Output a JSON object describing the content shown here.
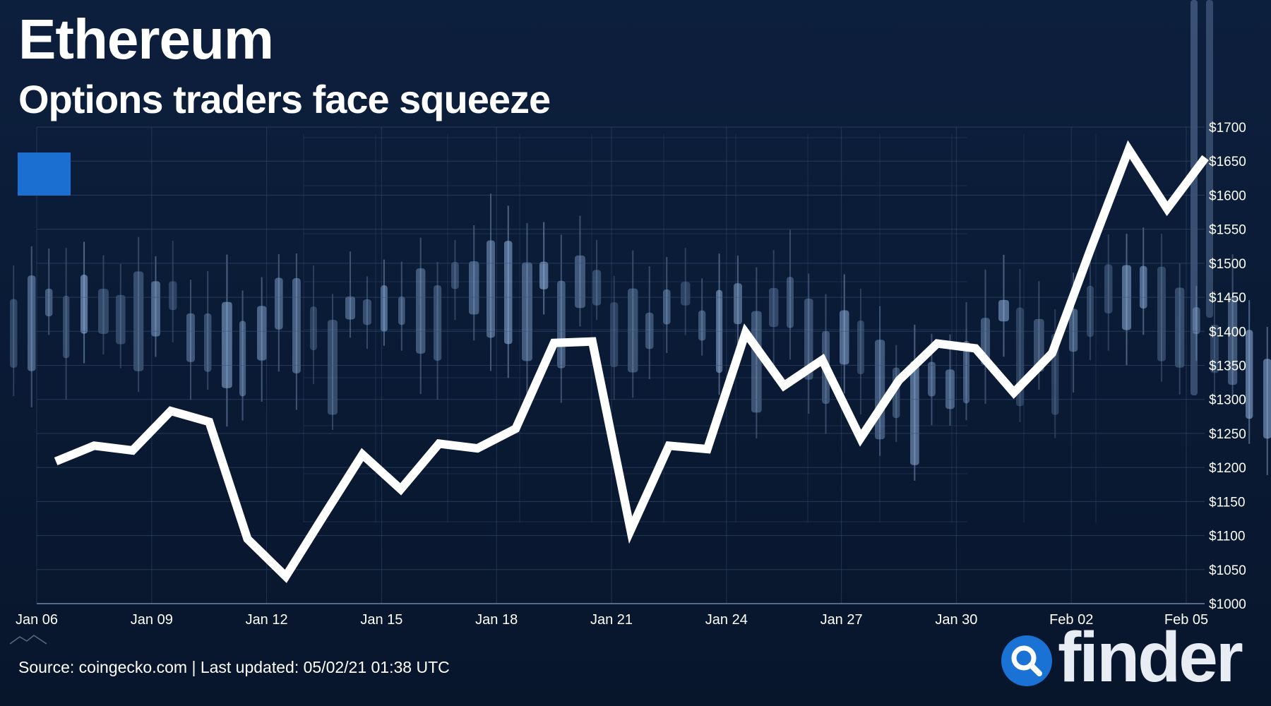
{
  "header": {
    "title": "Ethereum",
    "subtitle": "Options traders face squeeze"
  },
  "footer": {
    "source": "Source: coingecko.com | Last updated: 05/02/21 01:38 UTC"
  },
  "brand": {
    "name": "finder",
    "logo_icon": "magnifier-icon",
    "logo_color": "#1a72d4"
  },
  "colors": {
    "background": "#0a1a33",
    "line": "#ffffff",
    "legend_swatch": "#1a6fd1",
    "axis_text": "#ffffff",
    "grid": "#3b5478"
  },
  "chart_data": {
    "type": "line",
    "title": "Ethereum",
    "subtitle": "Options traders face squeeze",
    "xlabel": "",
    "ylabel": "",
    "ylim": [
      1000,
      1700
    ],
    "y_ticks": [
      1000,
      1050,
      1100,
      1150,
      1200,
      1250,
      1300,
      1350,
      1400,
      1450,
      1500,
      1550,
      1600,
      1650,
      1700
    ],
    "y_tick_labels": [
      "$1000",
      "$1050",
      "$1100",
      "$1150",
      "$1200",
      "$1250",
      "$1300",
      "$1350",
      "$1400",
      "$1450",
      "$1500",
      "$1550",
      "$1600",
      "$1650",
      "$1700"
    ],
    "x_range": [
      "2021-01-06",
      "2021-02-05"
    ],
    "x_tick_dates": [
      "2021-01-06",
      "2021-01-09",
      "2021-01-12",
      "2021-01-15",
      "2021-01-18",
      "2021-01-21",
      "2021-01-24",
      "2021-01-27",
      "2021-01-30",
      "2021-02-02",
      "2021-02-05"
    ],
    "x_tick_labels": [
      "Jan 06",
      "Jan 09",
      "Jan 12",
      "Jan 15",
      "Jan 18",
      "Jan 21",
      "Jan 24",
      "Jan 27",
      "Jan 30",
      "Feb 02",
      "Feb 05"
    ],
    "grid": true,
    "legend": "top-left",
    "series": [
      {
        "color": "#ffffff",
        "points": [
          [
            "2021-01-06T12:00",
            1209
          ],
          [
            "2021-01-07T12:00",
            1232
          ],
          [
            "2021-01-08T12:00",
            1225
          ],
          [
            "2021-01-09T12:00",
            1283
          ],
          [
            "2021-01-10T12:00",
            1267
          ],
          [
            "2021-01-11T12:00",
            1095
          ],
          [
            "2021-01-12T12:00",
            1040
          ],
          [
            "2021-01-13T12:00",
            1130
          ],
          [
            "2021-01-14T12:00",
            1219
          ],
          [
            "2021-01-15T12:00",
            1168
          ],
          [
            "2021-01-16T12:00",
            1235
          ],
          [
            "2021-01-17T12:00",
            1228
          ],
          [
            "2021-01-18T12:00",
            1257
          ],
          [
            "2021-01-19T12:00",
            1383
          ],
          [
            "2021-01-20T12:00",
            1385
          ],
          [
            "2021-01-21T12:00",
            1108
          ],
          [
            "2021-01-22T12:00",
            1232
          ],
          [
            "2021-01-23T12:00",
            1227
          ],
          [
            "2021-01-24T12:00",
            1398
          ],
          [
            "2021-01-25T12:00",
            1320
          ],
          [
            "2021-01-26T12:00",
            1358
          ],
          [
            "2021-01-27T12:00",
            1243
          ],
          [
            "2021-01-28T12:00",
            1328
          ],
          [
            "2021-01-29T12:00",
            1382
          ],
          [
            "2021-01-30T12:00",
            1375
          ],
          [
            "2021-01-31T12:00",
            1310
          ],
          [
            "2021-02-01T12:00",
            1368
          ],
          [
            "2021-02-02T12:00",
            1520
          ],
          [
            "2021-02-03T12:00",
            1667
          ],
          [
            "2021-02-04T12:00",
            1580
          ],
          [
            "2021-02-05T12:00",
            1655
          ]
        ]
      }
    ]
  }
}
